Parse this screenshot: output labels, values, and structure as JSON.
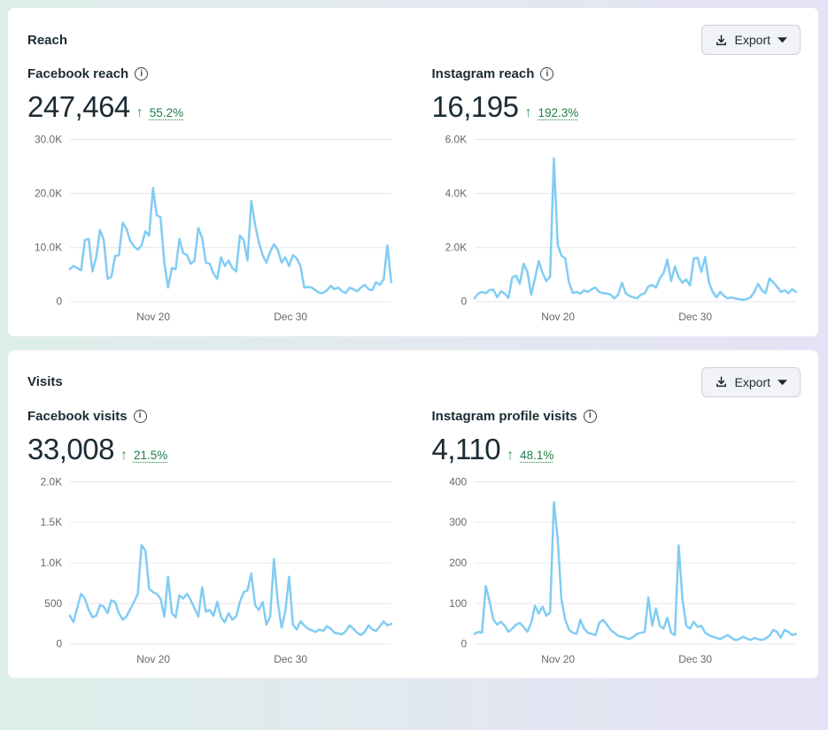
{
  "colors": {
    "line": "#81ccf3",
    "grid": "#e4e6eb",
    "axis_text": "#65676b",
    "text_dark": "#1c2b33",
    "positive_green": "#1d7e48"
  },
  "sections": [
    {
      "title": "Reach",
      "export_label": "Export",
      "charts": [
        {
          "label": "Facebook reach",
          "value": "247,464",
          "arrow": "↑",
          "delta": "55.2%"
        },
        {
          "label": "Instagram reach",
          "value": "16,195",
          "arrow": "↑",
          "delta": "192.3%"
        }
      ]
    },
    {
      "title": "Visits",
      "export_label": "Export",
      "charts": [
        {
          "label": "Facebook visits",
          "value": "33,008",
          "arrow": "↑",
          "delta": "21.5%"
        },
        {
          "label": "Instagram profile visits",
          "value": "4,110",
          "arrow": "↑",
          "delta": "48.1%"
        }
      ]
    }
  ],
  "chart_data": [
    {
      "type": "line",
      "title": "Facebook reach",
      "total": 247464,
      "change_pct": "+55.2%",
      "xlabel": "",
      "ylabel": "",
      "ylim": [
        0,
        30000
      ],
      "grid": true,
      "legend": "none",
      "yticks": [
        {
          "v": 0,
          "label": "0"
        },
        {
          "v": 10000,
          "label": "10.0K"
        },
        {
          "v": 20000,
          "label": "20.0K"
        },
        {
          "v": 30000,
          "label": "30.0K"
        }
      ],
      "xticks": [
        {
          "label": "Nov 20",
          "pos": 0.26
        },
        {
          "label": "Dec 30",
          "pos": 0.687
        }
      ],
      "values": [
        6000,
        6600,
        6200,
        5800,
        11400,
        11600,
        5600,
        8200,
        13200,
        11400,
        4200,
        4600,
        8400,
        8600,
        14600,
        13400,
        11200,
        10200,
        9600,
        10400,
        13000,
        12200,
        21000,
        16000,
        15600,
        7200,
        2600,
        6200,
        6000,
        11600,
        9000,
        8600,
        7000,
        7600,
        13600,
        11800,
        7200,
        7000,
        5200,
        4200,
        8200,
        6600,
        7600,
        6200,
        5600,
        12200,
        11400,
        7600,
        18600,
        14200,
        11000,
        8600,
        7200,
        9200,
        10600,
        9600,
        7200,
        8200,
        6600,
        8600,
        8000,
        6600,
        2600,
        2700,
        2600,
        2100,
        1600,
        1600,
        2100,
        2900,
        2300,
        2600,
        1900,
        1600,
        2600,
        2300,
        1900,
        2600,
        3100,
        2300,
        2100,
        3600,
        3100,
        4100,
        10400,
        3600
      ]
    },
    {
      "type": "line",
      "title": "Instagram reach",
      "total": 16195,
      "change_pct": "+192.3%",
      "xlabel": "",
      "ylabel": "",
      "ylim": [
        0,
        6000
      ],
      "grid": true,
      "legend": "none",
      "yticks": [
        {
          "v": 0,
          "label": "0"
        },
        {
          "v": 2000,
          "label": "2.0K"
        },
        {
          "v": 4000,
          "label": "4.0K"
        },
        {
          "v": 6000,
          "label": "6.0K"
        }
      ],
      "xticks": [
        {
          "label": "Nov 20",
          "pos": 0.26
        },
        {
          "label": "Dec 30",
          "pos": 0.687
        }
      ],
      "values": [
        120,
        300,
        360,
        310,
        430,
        440,
        160,
        380,
        290,
        130,
        900,
        960,
        660,
        1400,
        1100,
        250,
        860,
        1500,
        1060,
        760,
        920,
        5300,
        2100,
        1700,
        1600,
        700,
        320,
        360,
        300,
        420,
        360,
        460,
        520,
        360,
        310,
        300,
        260,
        120,
        260,
        700,
        310,
        210,
        160,
        120,
        260,
        310,
        560,
        620,
        520,
        860,
        1050,
        1550,
        760,
        1300,
        900,
        700,
        820,
        600,
        1600,
        1620,
        1100,
        1650,
        700,
        360,
        160,
        360,
        210,
        120,
        160,
        110,
        90,
        70,
        90,
        160,
        360,
        660,
        420,
        310,
        860,
        720,
        560,
        360,
        420,
        310,
        460,
        360
      ]
    },
    {
      "type": "line",
      "title": "Facebook visits",
      "total": 33008,
      "change_pct": "+21.5%",
      "xlabel": "",
      "ylabel": "",
      "ylim": [
        0,
        2000
      ],
      "grid": true,
      "legend": "none",
      "yticks": [
        {
          "v": 0,
          "label": "0"
        },
        {
          "v": 500,
          "label": "500"
        },
        {
          "v": 1000,
          "label": "1.0K"
        },
        {
          "v": 1500,
          "label": "1.5K"
        },
        {
          "v": 2000,
          "label": "2.0K"
        }
      ],
      "xticks": [
        {
          "label": "Nov 20",
          "pos": 0.26
        },
        {
          "label": "Dec 30",
          "pos": 0.687
        }
      ],
      "values": [
        350,
        270,
        450,
        620,
        560,
        420,
        330,
        350,
        480,
        460,
        380,
        540,
        520,
        380,
        300,
        340,
        430,
        520,
        620,
        1220,
        1150,
        680,
        640,
        620,
        560,
        340,
        830,
        380,
        330,
        600,
        560,
        620,
        540,
        440,
        340,
        700,
        400,
        420,
        350,
        520,
        330,
        270,
        380,
        300,
        340,
        520,
        640,
        660,
        870,
        480,
        420,
        520,
        240,
        340,
        1050,
        520,
        200,
        400,
        830,
        240,
        180,
        280,
        230,
        190,
        170,
        150,
        180,
        160,
        220,
        190,
        140,
        130,
        120,
        160,
        230,
        190,
        140,
        110,
        150,
        230,
        180,
        160,
        220,
        280,
        230,
        250
      ]
    },
    {
      "type": "line",
      "title": "Instagram profile visits",
      "total": 4110,
      "change_pct": "+48.1%",
      "xlabel": "",
      "ylabel": "",
      "ylim": [
        0,
        400
      ],
      "grid": true,
      "legend": "none",
      "yticks": [
        {
          "v": 0,
          "label": "0"
        },
        {
          "v": 100,
          "label": "100"
        },
        {
          "v": 200,
          "label": "200"
        },
        {
          "v": 300,
          "label": "300"
        },
        {
          "v": 400,
          "label": "400"
        }
      ],
      "xticks": [
        {
          "label": "Nov 20",
          "pos": 0.26
        },
        {
          "label": "Dec 30",
          "pos": 0.687
        }
      ],
      "values": [
        25,
        30,
        28,
        143,
        105,
        60,
        48,
        55,
        45,
        30,
        38,
        48,
        52,
        42,
        30,
        52,
        95,
        75,
        92,
        70,
        78,
        350,
        260,
        110,
        60,
        35,
        28,
        25,
        60,
        38,
        28,
        25,
        22,
        52,
        60,
        48,
        35,
        28,
        20,
        18,
        15,
        12,
        18,
        25,
        28,
        30,
        115,
        45,
        88,
        45,
        38,
        65,
        28,
        22,
        243,
        110,
        45,
        38,
        55,
        42,
        45,
        28,
        22,
        18,
        15,
        12,
        18,
        22,
        15,
        10,
        12,
        18,
        14,
        10,
        15,
        12,
        10,
        14,
        20,
        35,
        30,
        15,
        35,
        30,
        22,
        25
      ]
    }
  ]
}
